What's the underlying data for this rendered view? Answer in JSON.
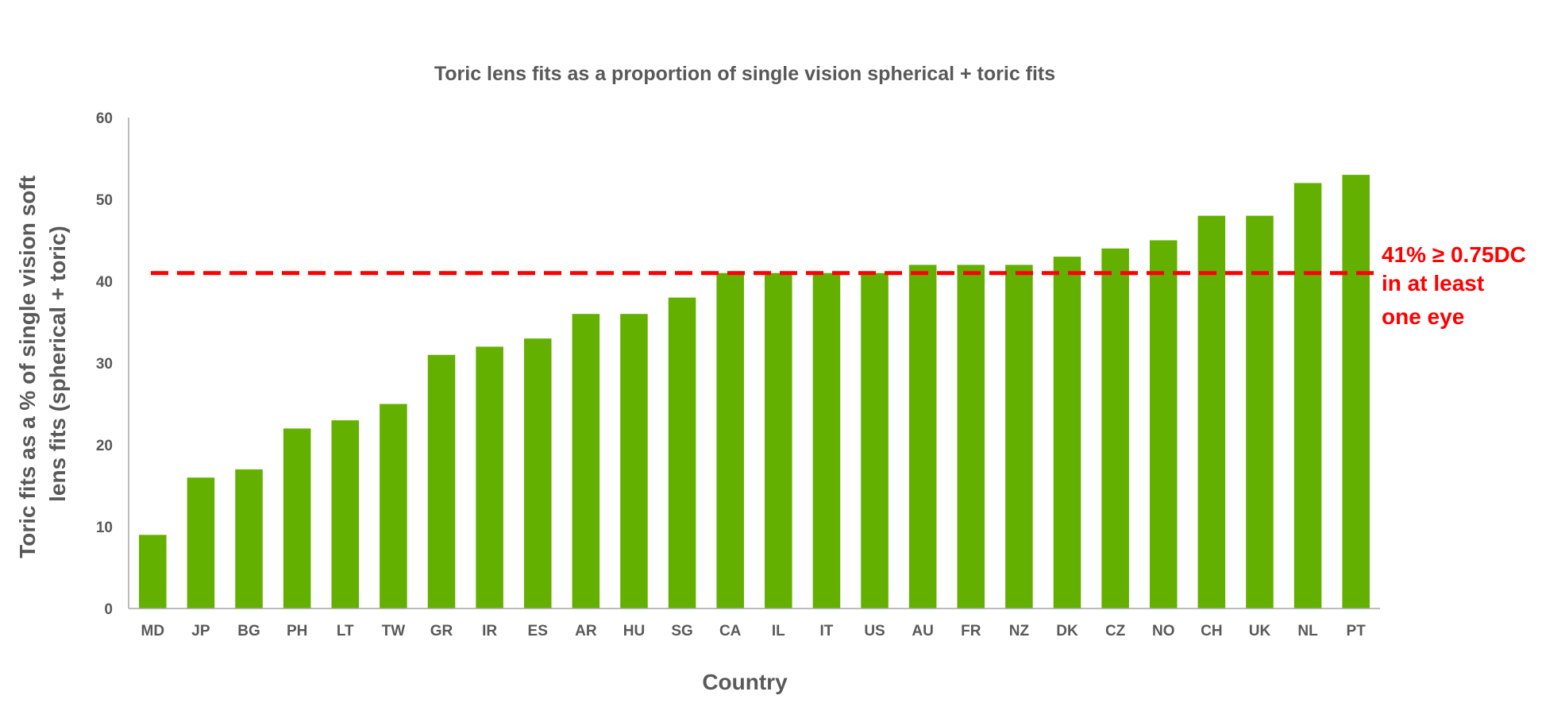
{
  "chart_data": {
    "type": "bar",
    "title": "Toric lens fits as a proportion of single vision spherical + toric fits",
    "xlabel": "Country",
    "ylabel_lines": [
      "Toric fits as a % of single vision soft",
      "lens fits (spherical + toric)"
    ],
    "ylim": [
      0,
      60
    ],
    "yticks": [
      0,
      10,
      20,
      30,
      40,
      50,
      60
    ],
    "grid": false,
    "categories": [
      "MD",
      "JP",
      "BG",
      "PH",
      "LT",
      "TW",
      "GR",
      "IR",
      "ES",
      "AR",
      "HU",
      "SG",
      "CA",
      "IL",
      "IT",
      "US",
      "AU",
      "FR",
      "NZ",
      "DK",
      "CZ",
      "NO",
      "CH",
      "UK",
      "NL",
      "PT"
    ],
    "values": [
      9,
      16,
      17,
      22,
      23,
      25,
      31,
      32,
      33,
      36,
      36,
      38,
      41,
      41,
      41,
      41,
      42,
      42,
      42,
      43,
      44,
      45,
      48,
      48,
      52,
      53
    ],
    "reference_line": {
      "value": 41,
      "label_lines": [
        "41% ≥ 0.75DC",
        "in at least",
        "one eye"
      ],
      "color": "#ff0000",
      "style": "dashed"
    },
    "bar_color": "#63b000"
  }
}
